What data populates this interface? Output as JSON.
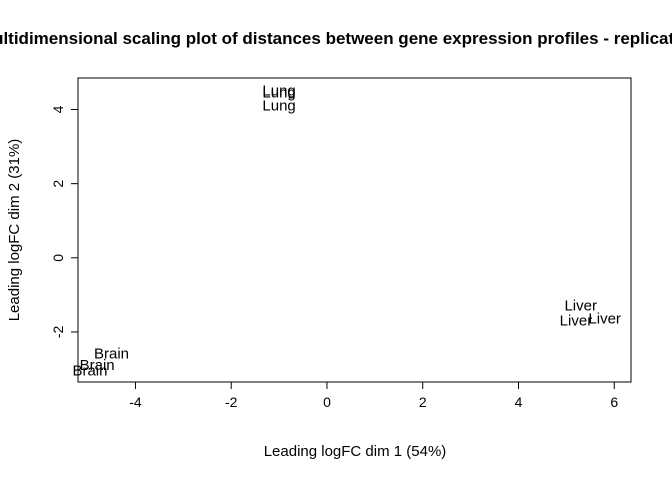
{
  "chart_data": {
    "type": "scatter",
    "title": "Multidimensional scaling plot of distances between gene expression profiles - replicates",
    "xlabel": "Leading logFC dim 1 (54%)",
    "ylabel": "Leading logFC dim 2 (31%)",
    "xlim": [
      -5.2,
      6.35
    ],
    "ylim": [
      -3.35,
      4.85
    ],
    "x_ticks": [
      -4,
      -2,
      0,
      2,
      4,
      6
    ],
    "y_ticks": [
      -2,
      0,
      2,
      4
    ],
    "points": [
      {
        "label": "Brain",
        "x": -4.5,
        "y": -2.6
      },
      {
        "label": "Brain",
        "x": -4.8,
        "y": -2.9
      },
      {
        "label": "Brain",
        "x": -4.95,
        "y": -3.05
      },
      {
        "label": "Lung",
        "x": -1.0,
        "y": 4.5
      },
      {
        "label": "Lung",
        "x": -1.0,
        "y": 4.45
      },
      {
        "label": "Lung",
        "x": -1.0,
        "y": 4.1
      },
      {
        "label": "Liver",
        "x": 5.3,
        "y": -1.3
      },
      {
        "label": "Liver",
        "x": 5.2,
        "y": -1.7
      },
      {
        "label": "Liver",
        "x": 5.8,
        "y": -1.65
      }
    ]
  }
}
